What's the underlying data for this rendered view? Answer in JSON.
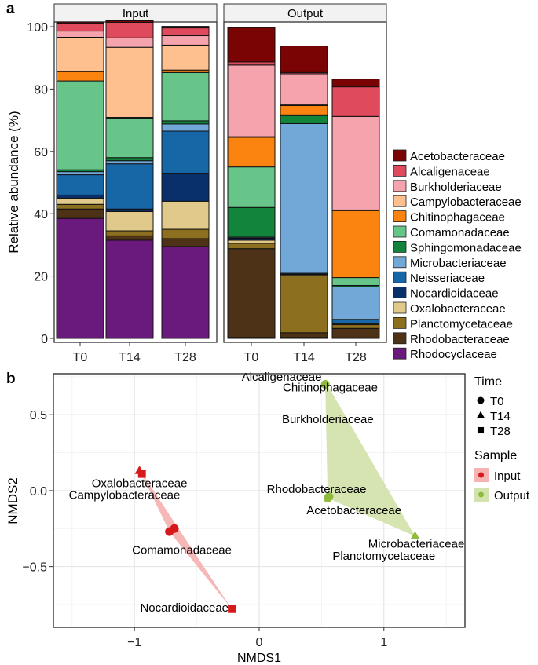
{
  "colors": {
    "Acetobacteraceae": "#7a0304",
    "Alcaligenaceae": "#e04a5d",
    "Burkholderiaceae": "#f5a3ad",
    "Campylobacteraceae": "#fdc08e",
    "Chitinophagaceae": "#fb8411",
    "Comamonadaceae": "#67c58a",
    "Sphingomonadaceae": "#12843b",
    "Microbacteriaceae": "#72a8d8",
    "Neisseriaceae": "#1766a6",
    "Nocardioidaceae": "#0a306c",
    "Oxalobacteraceae": "#e0c98a",
    "Planctomycetaceae": "#8c6f1f",
    "Rhodobacteraceae": "#4e3217",
    "Rhodocyclaceae": "#6a1a7c",
    "input": "#d7191c",
    "output": "#8fba3e",
    "input_fill": "#f6b3b3",
    "output_fill": "#d3e3ad"
  },
  "chart_data": [
    {
      "panel_label": "a",
      "type": "bar",
      "stacked": true,
      "ylabel": "Relative abundance (%)",
      "ylim": [
        0,
        100
      ],
      "yticks": [
        0,
        20,
        40,
        60,
        80,
        100
      ],
      "facets": [
        "Input",
        "Output"
      ],
      "categories": [
        "T0",
        "T14",
        "T28"
      ],
      "legend_position": "right",
      "series": [
        {
          "name": "Rhodocyclaceae",
          "values": {
            "Input": [
              38.5,
              31.5,
              29.5
            ],
            "Output": [
              0.3,
              0.3,
              0.2
            ]
          }
        },
        {
          "name": "Rhodobacteraceae",
          "values": {
            "Input": [
              3.0,
              1.4,
              2.5
            ],
            "Output": [
              28.5,
              1.5,
              3.0
            ]
          }
        },
        {
          "name": "Planctomycetaceae",
          "values": {
            "Input": [
              1.5,
              1.6,
              3.0
            ],
            "Output": [
              1.7,
              18.3,
              1.2
            ]
          }
        },
        {
          "name": "Oxalobacteraceae",
          "values": {
            "Input": [
              2.0,
              6.2,
              9.0
            ],
            "Output": [
              1.0,
              0.3,
              0.3
            ]
          }
        },
        {
          "name": "Nocardioidaceae",
          "values": {
            "Input": [
              1.0,
              0.8,
              9.0
            ],
            "Output": [
              0.5,
              0.2,
              0.2
            ]
          }
        },
        {
          "name": "Neisseriaceae",
          "values": {
            "Input": [
              6.5,
              14.5,
              13.5
            ],
            "Output": [
              0.2,
              0.3,
              1.2
            ]
          }
        },
        {
          "name": "Microbacteriaceae",
          "values": {
            "Input": [
              1.0,
              1.0,
              2.3
            ],
            "Output": [
              0.3,
              48.0,
              10.5
            ]
          }
        },
        {
          "name": "Sphingomonadaceae",
          "values": {
            "Input": [
              0.6,
              1.0,
              1.0
            ],
            "Output": [
              9.5,
              2.6,
              0.4
            ]
          }
        },
        {
          "name": "Comamonadaceae",
          "values": {
            "Input": [
              28.5,
              12.7,
              15.5
            ],
            "Output": [
              13.0,
              0.2,
              2.5
            ]
          }
        },
        {
          "name": "Chitinophagaceae",
          "values": {
            "Input": [
              3.0,
              0.2,
              0.8
            ],
            "Output": [
              9.5,
              3.0,
              21.5
            ]
          }
        },
        {
          "name": "Campylobacteraceae",
          "values": {
            "Input": [
              11.0,
              22.5,
              8.0
            ],
            "Output": [
              0.2,
              0.2,
              0.2
            ]
          }
        },
        {
          "name": "Burkholderiaceae",
          "values": {
            "Input": [
              2.0,
              3.0,
              3.0
            ],
            "Output": [
              23.0,
              10.0,
              30.0
            ]
          }
        },
        {
          "name": "Alcaligenaceae",
          "values": {
            "Input": [
              2.5,
              5.0,
              2.5
            ],
            "Output": [
              1.0,
              0.4,
              9.5
            ]
          }
        },
        {
          "name": "Acetobacteraceae",
          "values": {
            "Input": [
              0.4,
              0.5,
              0.5
            ],
            "Output": [
              11.0,
              8.5,
              2.5
            ]
          }
        }
      ]
    },
    {
      "panel_label": "b",
      "type": "scatter",
      "xlabel": "NMDS1",
      "ylabel": "NMDS2",
      "xlim": [
        -1.65,
        1.65
      ],
      "ylim": [
        -0.9,
        0.77
      ],
      "xticks": [
        -1,
        0,
        1
      ],
      "yticks": [
        -0.5,
        0.0,
        0.5
      ],
      "xtick_labels": [
        "−1",
        "0",
        "1"
      ],
      "ytick_labels": [
        "−0.5",
        "0.0",
        "0.5"
      ],
      "grid": true,
      "legend_time_title": "Time",
      "legend_time": [
        {
          "label": "T0",
          "shape": "circle"
        },
        {
          "label": "T14",
          "shape": "triangle"
        },
        {
          "label": "T28",
          "shape": "square"
        }
      ],
      "legend_sample_title": "Sample",
      "legend_sample": [
        "Input",
        "Output"
      ],
      "points": [
        {
          "sample": "Input",
          "time": "T0",
          "x": -0.72,
          "y": -0.27
        },
        {
          "sample": "Input",
          "time": "T0",
          "x": -0.68,
          "y": -0.25
        },
        {
          "sample": "Input",
          "time": "T14",
          "x": -0.96,
          "y": 0.13
        },
        {
          "sample": "Input",
          "time": "T28",
          "x": -0.94,
          "y": 0.11
        },
        {
          "sample": "Input",
          "time": "T28",
          "x": -0.22,
          "y": -0.78
        },
        {
          "sample": "Output",
          "time": "T0",
          "x": 0.53,
          "y": 0.7
        },
        {
          "sample": "Output",
          "time": "T0",
          "x": 0.55,
          "y": -0.05
        },
        {
          "sample": "Output",
          "time": "T0",
          "x": 0.56,
          "y": -0.04
        },
        {
          "sample": "Output",
          "time": "T14",
          "x": 1.25,
          "y": -0.3
        }
      ],
      "hull_input": [
        [
          -0.96,
          0.14
        ],
        [
          -0.22,
          -0.78
        ],
        [
          -0.72,
          -0.27
        ]
      ],
      "hull_output": [
        [
          0.53,
          0.72
        ],
        [
          0.53,
          0.68
        ],
        [
          0.55,
          -0.05
        ],
        [
          1.25,
          -0.3
        ]
      ],
      "labels": [
        {
          "text": "Alcaligenaceae",
          "x": 0.18,
          "y": 0.75
        },
        {
          "text": "Chitinophagaceae",
          "x": 0.57,
          "y": 0.68
        },
        {
          "text": "Burkholderiaceae",
          "x": 0.55,
          "y": 0.47
        },
        {
          "text": "Oxalobacteraceae",
          "x": -0.96,
          "y": 0.05
        },
        {
          "text": "Campylobacteraceae",
          "x": -1.08,
          "y": -0.03
        },
        {
          "text": "Rhodobacteraceae",
          "x": 0.46,
          "y": 0.01
        },
        {
          "text": "Acetobacteraceae",
          "x": 0.76,
          "y": -0.13
        },
        {
          "text": "Comamonadaceae",
          "x": -0.62,
          "y": -0.39
        },
        {
          "text": "Microbacteriaceae",
          "x": 1.26,
          "y": -0.35
        },
        {
          "text": "Planctomycetaceae",
          "x": 1.0,
          "y": -0.43
        },
        {
          "text": "Nocardioidaceae",
          "x": -0.6,
          "y": -0.77
        }
      ]
    }
  ]
}
